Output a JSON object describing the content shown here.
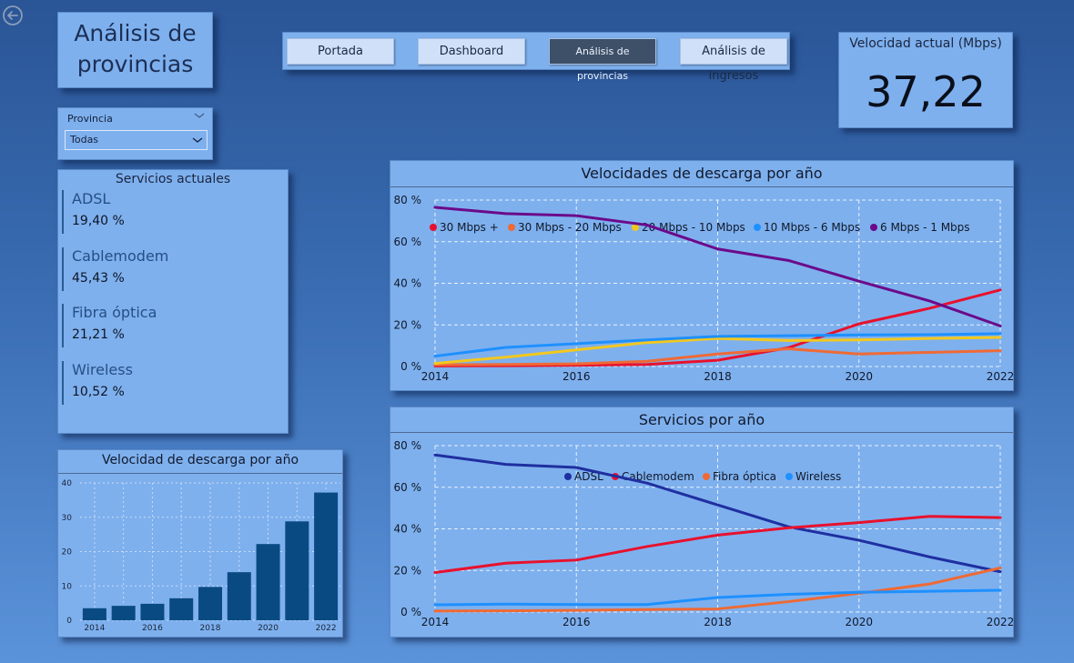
{
  "page": {
    "title": "Análisis de provincias"
  },
  "nav": {
    "buttons": [
      {
        "label": "Portada",
        "active": false
      },
      {
        "label": "Dashboard",
        "active": false
      },
      {
        "label": "Análisis de provincias",
        "active": true
      },
      {
        "label": "Análisis de ingresos",
        "active": false
      }
    ]
  },
  "kpi": {
    "label": "Velocidad actual (Mbps)",
    "value": "37,22"
  },
  "slicer": {
    "label": "Provincia",
    "value": "Todas"
  },
  "services": {
    "title": "Servicios actuales",
    "items": [
      {
        "name": "ADSL",
        "percent": "19,40 %"
      },
      {
        "name": "Cablemodem",
        "percent": "45,43 %"
      },
      {
        "name": "Fibra óptica",
        "percent": "21,21 %"
      },
      {
        "name": "Wireless",
        "percent": "10,52 %"
      }
    ]
  },
  "colors": {
    "panel": "#7eb0ee",
    "bar": "#0a4a82",
    "grid": "#e9f1fc"
  },
  "chart_data": [
    {
      "id": "bar-speed",
      "type": "bar",
      "title": "Velocidad de descarga por año",
      "categories": [
        "2014",
        "2015",
        "2016",
        "2017",
        "2018",
        "2019",
        "2020",
        "2021",
        "2022"
      ],
      "x_tick_labels": [
        "2014",
        "",
        "2016",
        "",
        "2018",
        "",
        "2020",
        "",
        "2022"
      ],
      "values": [
        3.5,
        4.2,
        4.8,
        6.4,
        9.7,
        14.0,
        22.2,
        28.8,
        37.2
      ],
      "ylim": [
        0,
        40
      ],
      "y_ticks": [
        "0",
        "10",
        "20",
        "30",
        "40"
      ],
      "color": "#0a4a82"
    },
    {
      "id": "line-speeds",
      "type": "line",
      "title": "Velocidades de descarga por año",
      "x": [
        2014,
        2015,
        2016,
        2017,
        2018,
        2019,
        2020,
        2021,
        2022
      ],
      "x_ticks": [
        "2014",
        "2016",
        "2018",
        "2020",
        "2022"
      ],
      "ylim": [
        0,
        80
      ],
      "y_ticks": [
        "0 %",
        "20 %",
        "40 %",
        "60 %",
        "80 %"
      ],
      "series": [
        {
          "name": "30 Mbps +",
          "color": "#e8112d",
          "values": [
            0.3,
            0.4,
            0.6,
            1.0,
            3.0,
            9.0,
            20.5,
            28.0,
            36.8
          ]
        },
        {
          "name": "30 Mbps - 20 Mbps",
          "color": "#ef6a35",
          "values": [
            0.8,
            1.0,
            1.3,
            2.5,
            6.0,
            8.5,
            6.0,
            6.8,
            7.6
          ]
        },
        {
          "name": "20 Mbps - 10 Mbps",
          "color": "#f2c81e",
          "values": [
            1.5,
            4.5,
            8.0,
            11.5,
            13.5,
            12.5,
            12.8,
            13.5,
            14.0
          ]
        },
        {
          "name": "10 Mbps - 6 Mbps",
          "color": "#1e90ff",
          "values": [
            5.0,
            9.2,
            11.0,
            12.8,
            14.5,
            14.8,
            15.2,
            15.3,
            15.8
          ]
        },
        {
          "name": "6 Mbps - 1 Mbps",
          "color": "#6b0a8a",
          "values": [
            76.5,
            73.5,
            72.5,
            68.0,
            56.5,
            51.0,
            41.0,
            31.5,
            19.5
          ]
        }
      ]
    },
    {
      "id": "line-services",
      "type": "line",
      "title": "Servicios por año",
      "x": [
        2014,
        2015,
        2016,
        2017,
        2018,
        2019,
        2020,
        2021,
        2022
      ],
      "x_ticks": [
        "2014",
        "2016",
        "2018",
        "2020",
        "2022"
      ],
      "ylim": [
        0,
        80
      ],
      "y_ticks": [
        "0 %",
        "20 %",
        "40 %",
        "60 %",
        "80 %"
      ],
      "series": [
        {
          "name": "ADSL",
          "color": "#1f2fa0",
          "values": [
            75.5,
            71.0,
            69.5,
            62.0,
            51.5,
            41.0,
            34.5,
            26.5,
            19.4
          ]
        },
        {
          "name": "Cablemodem",
          "color": "#e8112d",
          "values": [
            19.0,
            23.5,
            25.0,
            31.5,
            37.0,
            40.5,
            43.0,
            46.0,
            45.4
          ]
        },
        {
          "name": "Fibra óptica",
          "color": "#ef6a35",
          "values": [
            0.5,
            0.6,
            0.8,
            1.2,
            1.5,
            5.0,
            9.0,
            13.5,
            21.2
          ]
        },
        {
          "name": "Wireless",
          "color": "#1e90ff",
          "values": [
            3.5,
            3.8,
            3.6,
            3.6,
            7.0,
            8.5,
            9.5,
            10.0,
            10.5
          ]
        }
      ]
    }
  ]
}
